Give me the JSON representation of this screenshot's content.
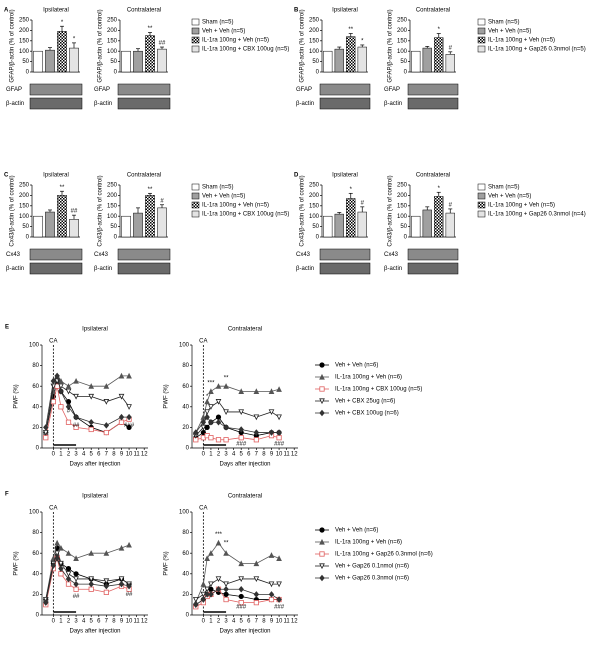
{
  "chart_data": [
    {
      "type": "bar",
      "panel": "A",
      "title": "Ipsilateral",
      "ylabel": "GFAP/β-actin (% of control)",
      "categories": [
        null,
        null,
        null,
        null
      ],
      "values": [
        100,
        105,
        195,
        115
      ],
      "errors": [
        0,
        12,
        25,
        25
      ],
      "significance": [
        null,
        null,
        "*",
        "*"
      ],
      "colors": [
        "#ffffff",
        "#a0a0a0",
        "#303030",
        "#e4e4e4"
      ],
      "hatch": [
        false,
        false,
        true,
        false
      ],
      "ylim": [
        0,
        250
      ],
      "yticks": [
        0,
        50,
        100,
        150,
        200,
        250
      ],
      "blot_labels": [
        "GFAP",
        "β-actin"
      ]
    },
    {
      "type": "bar",
      "title": "Contralateral",
      "ylabel": "GFAP/β-actin (% of control)",
      "categories": [
        "Sham (n=5)",
        "Veh + Veh (n=5)",
        "IL-1ra 100ng + Veh (n=5)",
        "IL-1ra 100ng + CBX 100ug (n=5)"
      ],
      "values": [
        100,
        100,
        175,
        110
      ],
      "errors": [
        0,
        12,
        15,
        10
      ],
      "significance": [
        null,
        null,
        "**",
        "##"
      ],
      "colors": [
        "#ffffff",
        "#a0a0a0",
        "#303030",
        "#e4e4e4"
      ],
      "hatch": [
        false,
        false,
        true,
        false
      ],
      "ylim": [
        0,
        250
      ],
      "yticks": [
        0,
        50,
        100,
        150,
        200,
        250
      ],
      "blot_labels": [
        "GFAP",
        "β-actin"
      ]
    },
    {
      "type": "bar",
      "panel": "B",
      "title": "Ipsilateral",
      "ylabel": "GFAP/β-actin (% of control)",
      "categories": [
        null,
        null,
        null,
        null
      ],
      "values": [
        100,
        110,
        170,
        120
      ],
      "errors": [
        0,
        10,
        15,
        10
      ],
      "significance": [
        null,
        null,
        "**",
        "*"
      ],
      "colors": [
        "#ffffff",
        "#a0a0a0",
        "#303030",
        "#e4e4e4"
      ],
      "hatch": [
        false,
        false,
        true,
        false
      ],
      "ylim": [
        0,
        250
      ],
      "yticks": [
        0,
        50,
        100,
        150,
        200,
        250
      ],
      "blot_labels": [
        "GFAP",
        "β-actin"
      ]
    },
    {
      "type": "bar",
      "title": "Contralateral",
      "ylabel": "GFAP/β-actin (% of control)",
      "categories": [
        "Sham (n=5)",
        "Veh + Veh (n=5)",
        "IL-1ra 100ng + Veh (n=5)",
        "IL-1ra 100ng + Gap26 0.3nmol (n=5)"
      ],
      "values": [
        100,
        115,
        165,
        85
      ],
      "errors": [
        0,
        8,
        20,
        12
      ],
      "significance": [
        null,
        null,
        "*",
        "#"
      ],
      "colors": [
        "#ffffff",
        "#a0a0a0",
        "#303030",
        "#e4e4e4"
      ],
      "hatch": [
        false,
        false,
        true,
        false
      ],
      "ylim": [
        0,
        250
      ],
      "yticks": [
        0,
        50,
        100,
        150,
        200,
        250
      ],
      "blot_labels": [
        "GFAP",
        "β-actin"
      ]
    },
    {
      "type": "bar",
      "panel": "C",
      "title": "Ipsilateral",
      "ylabel": "Cx43/β-actin (% of control)",
      "categories": [
        null,
        null,
        null,
        null
      ],
      "values": [
        100,
        120,
        200,
        85
      ],
      "errors": [
        0,
        10,
        20,
        20
      ],
      "significance": [
        null,
        null,
        "**",
        "##"
      ],
      "colors": [
        "#ffffff",
        "#a0a0a0",
        "#303030",
        "#e4e4e4"
      ],
      "hatch": [
        false,
        false,
        true,
        false
      ],
      "ylim": [
        0,
        250
      ],
      "yticks": [
        0,
        50,
        100,
        150,
        200,
        250
      ],
      "blot_labels": [
        "Cx43",
        "β-actin"
      ]
    },
    {
      "type": "bar",
      "title": "Contralateral",
      "ylabel": "Cx43/β-actin (% of control)",
      "categories": [
        "Sham (n=5)",
        "Veh + Veh (n=5)",
        "IL-1ra 100ng + Veh (n=5)",
        "IL-1ra 100ng + CBX 100ug (n=5)"
      ],
      "values": [
        100,
        115,
        200,
        140
      ],
      "errors": [
        0,
        25,
        10,
        15
      ],
      "significance": [
        null,
        null,
        "**",
        "#"
      ],
      "colors": [
        "#ffffff",
        "#a0a0a0",
        "#303030",
        "#e4e4e4"
      ],
      "hatch": [
        false,
        false,
        true,
        false
      ],
      "ylim": [
        0,
        250
      ],
      "yticks": [
        0,
        50,
        100,
        150,
        200,
        250
      ],
      "blot_labels": [
        "Cx43",
        "β-actin"
      ]
    },
    {
      "type": "bar",
      "panel": "D",
      "title": "Ipsilateral",
      "ylabel": "Cx43/β-actin (% of control)",
      "categories": [
        null,
        null,
        null,
        null
      ],
      "values": [
        100,
        110,
        185,
        120
      ],
      "errors": [
        0,
        8,
        25,
        25
      ],
      "significance": [
        null,
        null,
        "*",
        "#"
      ],
      "colors": [
        "#ffffff",
        "#a0a0a0",
        "#303030",
        "#e4e4e4"
      ],
      "hatch": [
        false,
        false,
        true,
        false
      ],
      "ylim": [
        0,
        250
      ],
      "yticks": [
        0,
        50,
        100,
        150,
        200,
        250
      ],
      "blot_labels": [
        "Cx43",
        "β-actin"
      ]
    },
    {
      "type": "bar",
      "title": "Contralateral",
      "ylabel": "Cx43/β-actin (% of control)",
      "categories": [
        "Sham (n=5)",
        "Veh + Veh (n=5)",
        "IL-1ra 100ng + Veh (n=5)",
        "IL-1ra 100ng + Gap26 0.3nmol (n=4)"
      ],
      "values": [
        100,
        130,
        195,
        115
      ],
      "errors": [
        0,
        15,
        20,
        20
      ],
      "significance": [
        null,
        null,
        "*",
        "#"
      ],
      "colors": [
        "#ffffff",
        "#a0a0a0",
        "#303030",
        "#e4e4e4"
      ],
      "hatch": [
        false,
        false,
        true,
        false
      ],
      "ylim": [
        0,
        250
      ],
      "yticks": [
        0,
        50,
        100,
        150,
        200,
        250
      ],
      "blot_labels": [
        "Cx43",
        "β-actin"
      ]
    },
    {
      "type": "line",
      "panel": "E",
      "title": "Ipsilateral",
      "xlabel": "Days after injection",
      "ylabel": "PWF (%)",
      "event_label": "CA",
      "event_x": 0,
      "treatment_x": [
        0,
        3
      ],
      "x": [
        -1,
        0,
        0.5,
        1,
        2,
        3,
        5,
        7,
        9,
        10
      ],
      "series": [
        {
          "color": "#000000",
          "marker": "circle",
          "values": [
            15,
            50,
            65,
            55,
            45,
            30,
            20,
            15,
            25,
            20
          ]
        },
        {
          "color": "#555555",
          "marker": "triangle",
          "values": [
            15,
            55,
            70,
            65,
            60,
            65,
            60,
            60,
            70,
            70
          ]
        },
        {
          "color": "#e06060",
          "marker": "square",
          "values": [
            10,
            45,
            60,
            40,
            25,
            20,
            18,
            15,
            25,
            28
          ]
        },
        {
          "color": "#222222",
          "marker": "triangle-down",
          "values": [
            15,
            60,
            65,
            60,
            55,
            50,
            50,
            45,
            50,
            40
          ]
        },
        {
          "color": "#333333",
          "marker": "diamond",
          "values": [
            20,
            65,
            70,
            55,
            40,
            30,
            25,
            22,
            30,
            30
          ]
        }
      ],
      "xlim": [
        -1.5,
        12.5
      ],
      "ylim": [
        0,
        100
      ],
      "xticks": [
        0,
        1,
        2,
        3,
        4,
        5,
        6,
        7,
        8,
        9,
        10,
        11,
        12
      ],
      "yticks": [
        0,
        20,
        40,
        60,
        80,
        100
      ],
      "annotations": [
        {
          "text": "#",
          "x": 2,
          "y": 36
        },
        {
          "text": "##",
          "x": 3,
          "y": 22
        },
        {
          "text": "###",
          "x": 10,
          "y": 22
        }
      ]
    },
    {
      "type": "line",
      "title": "Contralateral",
      "xlabel": "Days after injection",
      "ylabel": "PWF (%)",
      "event_label": "CA",
      "event_x": 0,
      "treatment_x": [
        0,
        3
      ],
      "x": [
        -1,
        0,
        0.5,
        1,
        2,
        3,
        5,
        7,
        9,
        10
      ],
      "series": [
        {
          "name": "Veh + Veh (n=6)",
          "color": "#000000",
          "marker": "circle",
          "values": [
            10,
            15,
            20,
            25,
            30,
            20,
            15,
            12,
            15,
            15
          ]
        },
        {
          "name": "IL-1ra 100ng + Veh (n=6)",
          "color": "#555555",
          "marker": "triangle",
          "values": [
            15,
            30,
            45,
            55,
            60,
            60,
            55,
            55,
            55,
            57
          ]
        },
        {
          "name": "IL-1ra 100ng + CBX 100ug (n=5)",
          "color": "#e06060",
          "marker": "square",
          "values": [
            8,
            10,
            12,
            10,
            8,
            8,
            10,
            8,
            12,
            10
          ]
        },
        {
          "name": "Veh + CBX 25ug (n=6)",
          "color": "#222222",
          "marker": "triangle-down",
          "values": [
            12,
            20,
            35,
            40,
            45,
            35,
            35,
            30,
            35,
            30
          ]
        },
        {
          "name": "Veh + CBX 100ug (n=6)",
          "color": "#333333",
          "marker": "diamond",
          "values": [
            15,
            25,
            30,
            25,
            25,
            20,
            18,
            15,
            15,
            15
          ]
        }
      ],
      "xlim": [
        -1.5,
        12.5
      ],
      "ylim": [
        0,
        100
      ],
      "xticks": [
        0,
        1,
        2,
        3,
        4,
        5,
        6,
        7,
        8,
        9,
        10,
        11,
        12
      ],
      "yticks": [
        0,
        20,
        40,
        60,
        80,
        100
      ],
      "annotations": [
        {
          "text": "*",
          "x": 0.5,
          "y": 50
        },
        {
          "text": "***",
          "x": 1,
          "y": 63
        },
        {
          "text": "**",
          "x": 3,
          "y": 68
        },
        {
          "text": "###",
          "x": 5,
          "y": 4
        },
        {
          "text": "###",
          "x": 10,
          "y": 4
        }
      ]
    },
    {
      "type": "line",
      "panel": "F",
      "title": "Ipsilateral",
      "xlabel": "Days after injection",
      "ylabel": "PWF (%)",
      "event_label": "CA",
      "event_x": 0,
      "treatment_x": [
        0,
        3
      ],
      "x": [
        -1,
        0,
        0.5,
        1,
        2,
        3,
        5,
        7,
        9,
        10
      ],
      "series": [
        {
          "color": "#000000",
          "marker": "circle",
          "values": [
            15,
            50,
            65,
            50,
            45,
            40,
            35,
            30,
            35,
            30
          ]
        },
        {
          "color": "#555555",
          "marker": "triangle",
          "values": [
            15,
            55,
            70,
            65,
            60,
            55,
            60,
            60,
            65,
            68
          ]
        },
        {
          "color": "#e06060",
          "marker": "square",
          "values": [
            10,
            45,
            55,
            40,
            30,
            25,
            25,
            22,
            28,
            25
          ]
        },
        {
          "color": "#222222",
          "marker": "triangle-down",
          "values": [
            15,
            50,
            60,
            50,
            40,
            35,
            35,
            33,
            35,
            30
          ]
        },
        {
          "color": "#333333",
          "marker": "diamond",
          "values": [
            12,
            48,
            55,
            45,
            35,
            30,
            30,
            28,
            30,
            28
          ]
        }
      ],
      "xlim": [
        -1.5,
        12.5
      ],
      "ylim": [
        0,
        100
      ],
      "xticks": [
        0,
        1,
        2,
        3,
        4,
        5,
        6,
        7,
        8,
        9,
        10,
        11,
        12
      ],
      "yticks": [
        0,
        20,
        40,
        60,
        80,
        100
      ],
      "annotations": [
        {
          "text": "##",
          "x": 3,
          "y": 18
        },
        {
          "text": "##",
          "x": 10,
          "y": 20
        }
      ]
    },
    {
      "type": "line",
      "title": "Contralateral",
      "xlabel": "Days after injection",
      "ylabel": "PWF (%)",
      "event_label": "CA",
      "event_x": 0,
      "treatment_x": [
        0,
        3
      ],
      "x": [
        -1,
        0,
        0.5,
        1,
        2,
        3,
        5,
        7,
        9,
        10
      ],
      "series": [
        {
          "name": "Veh + Veh (n=6)",
          "color": "#000000",
          "marker": "circle",
          "values": [
            10,
            15,
            20,
            25,
            22,
            20,
            18,
            15,
            15,
            15
          ]
        },
        {
          "name": "IL-1ra 100ng + Veh (n=6)",
          "color": "#555555",
          "marker": "triangle",
          "values": [
            12,
            30,
            55,
            60,
            70,
            60,
            50,
            50,
            58,
            55
          ]
        },
        {
          "name": "IL-1ra 100ng + Gap26 0.3nmol (n=6)",
          "color": "#e06060",
          "marker": "square",
          "values": [
            8,
            12,
            18,
            20,
            25,
            15,
            12,
            12,
            15,
            15
          ]
        },
        {
          "name": "Veh + Gap26 0.1nmol (n=6)",
          "color": "#222222",
          "marker": "triangle-down",
          "values": [
            15,
            20,
            25,
            30,
            35,
            30,
            35,
            35,
            30,
            30
          ]
        },
        {
          "name": "Veh + Gap26 0.3nmol (n=6)",
          "color": "#333333",
          "marker": "diamond",
          "values": [
            10,
            15,
            20,
            20,
            25,
            25,
            25,
            20,
            20,
            15
          ]
        }
      ],
      "xlim": [
        -1.5,
        12.5
      ],
      "ylim": [
        0,
        100
      ],
      "xticks": [
        0,
        1,
        2,
        3,
        4,
        5,
        6,
        7,
        8,
        9,
        10,
        11,
        12
      ],
      "yticks": [
        0,
        20,
        40,
        60,
        80,
        100
      ],
      "annotations": [
        {
          "text": "***",
          "x": 2,
          "y": 78
        },
        {
          "text": "**",
          "x": 3,
          "y": 70
        },
        {
          "text": "###",
          "x": 5,
          "y": 8
        },
        {
          "text": "###",
          "x": 10,
          "y": 8
        }
      ]
    }
  ]
}
